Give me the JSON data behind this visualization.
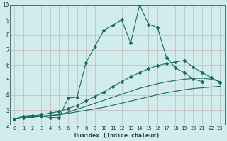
{
  "xlabel": "Humidex (Indice chaleur)",
  "bg_color": "#d0ecec",
  "line_color": "#1a6b5a",
  "grid_color": "#c8b8b8",
  "xlim": [
    -0.5,
    23.5
  ],
  "ylim": [
    2,
    10
  ],
  "xticks": [
    0,
    1,
    2,
    3,
    4,
    5,
    6,
    7,
    8,
    9,
    10,
    11,
    12,
    13,
    14,
    15,
    16,
    17,
    18,
    19,
    20,
    21,
    22,
    23
  ],
  "yticks": [
    2,
    3,
    4,
    5,
    6,
    7,
    8,
    9,
    10
  ],
  "line1_x": [
    0,
    1,
    2,
    3,
    4,
    5,
    6,
    7,
    8,
    9,
    10,
    11,
    12,
    13,
    14,
    15,
    16,
    17,
    18,
    19,
    20,
    21,
    22,
    23
  ],
  "line1_y": [
    2.4,
    2.6,
    2.65,
    2.6,
    2.5,
    2.5,
    3.8,
    3.85,
    6.15,
    7.25,
    8.3,
    8.65,
    9.0,
    7.45,
    10.0,
    8.7,
    8.5,
    6.5,
    5.8,
    5.5,
    5.05,
    4.9,
    null,
    null
  ],
  "line2_x": [
    0,
    1,
    2,
    3,
    4,
    5,
    6,
    7,
    8,
    9,
    10,
    11,
    12,
    13,
    14,
    15,
    16,
    17,
    18,
    19,
    20,
    21,
    22,
    23
  ],
  "line2_y": [
    2.4,
    2.5,
    2.6,
    2.7,
    2.8,
    2.9,
    3.1,
    3.3,
    3.6,
    3.9,
    4.2,
    4.55,
    4.9,
    5.2,
    5.5,
    5.75,
    5.95,
    6.1,
    6.2,
    6.3,
    5.85,
    5.5,
    5.15,
    4.85
  ],
  "line3_x": [
    0,
    1,
    2,
    3,
    4,
    5,
    6,
    7,
    8,
    9,
    10,
    11,
    12,
    13,
    14,
    15,
    16,
    17,
    18,
    19,
    20,
    21,
    22,
    23
  ],
  "line3_y": [
    2.4,
    2.5,
    2.55,
    2.6,
    2.65,
    2.7,
    2.85,
    3.05,
    3.25,
    3.45,
    3.65,
    3.85,
    4.05,
    4.25,
    4.45,
    4.6,
    4.75,
    4.87,
    4.97,
    5.05,
    5.1,
    5.12,
    5.05,
    4.9
  ],
  "line4_x": [
    0,
    1,
    2,
    3,
    4,
    5,
    6,
    7,
    8,
    9,
    10,
    11,
    12,
    13,
    14,
    15,
    16,
    17,
    18,
    19,
    20,
    21,
    22,
    23
  ],
  "line4_y": [
    2.4,
    2.48,
    2.53,
    2.58,
    2.63,
    2.68,
    2.78,
    2.88,
    2.98,
    3.08,
    3.18,
    3.32,
    3.46,
    3.6,
    3.74,
    3.88,
    4.02,
    4.15,
    4.25,
    4.35,
    4.43,
    4.48,
    4.53,
    4.58
  ]
}
